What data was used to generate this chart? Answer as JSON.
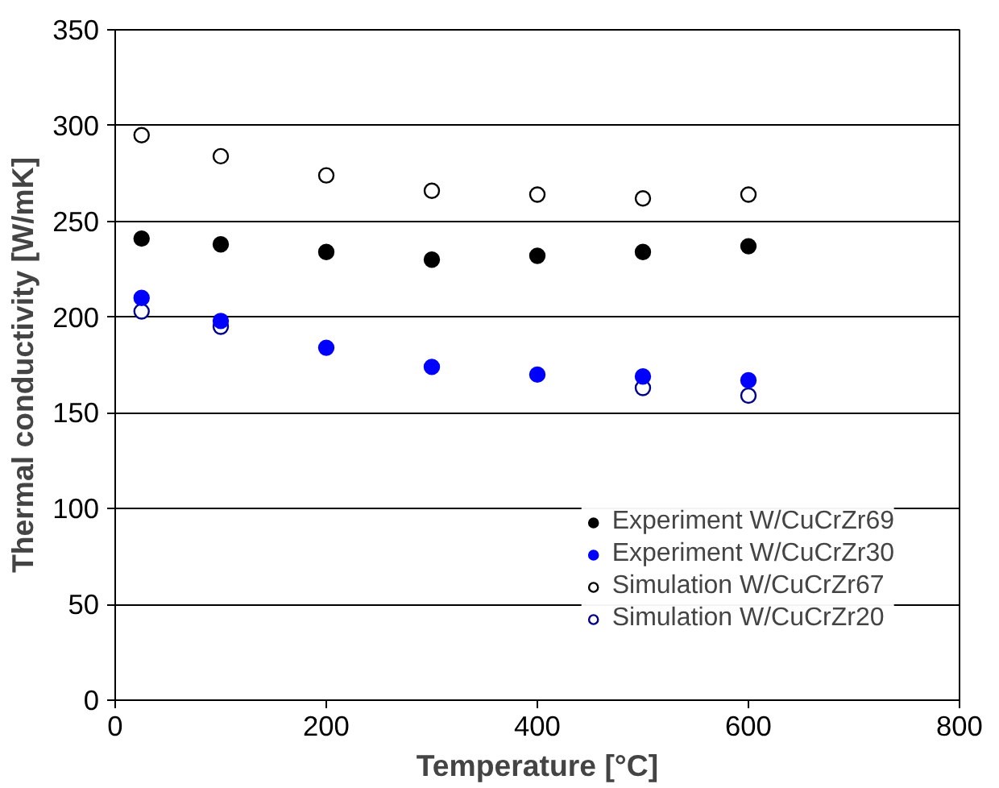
{
  "chart_data": {
    "type": "scatter",
    "xlabel": "Temperature [°C]",
    "ylabel": "Thermal conductivity [W/mK]",
    "x": [
      25,
      100,
      200,
      300,
      400,
      500,
      600
    ],
    "series": [
      {
        "name": "Experiment W/CuCrZr69",
        "color": "#000000",
        "marker": "circle",
        "values": [
          241,
          238,
          234,
          230,
          232,
          234,
          237
        ]
      },
      {
        "name": "Experiment W/CuCrZr30",
        "color": "#0000ff",
        "marker": "circle",
        "values": [
          210,
          198,
          184,
          174,
          170,
          169,
          167
        ]
      },
      {
        "name": "Simulation W/CuCrZr67",
        "color": "#000000",
        "marker": "circle_open",
        "values": [
          295,
          284,
          274,
          266,
          264,
          262,
          264
        ]
      },
      {
        "name": "Simulation W/CuCrZr20",
        "color": "#00008b",
        "marker": "circle_open",
        "values": [
          203,
          195,
          null,
          null,
          null,
          163,
          159
        ]
      }
    ],
    "xlim": [
      0,
      800
    ],
    "xticks": [
      0,
      200,
      400,
      600,
      800
    ],
    "ylim": [
      0,
      350
    ],
    "yticks": [
      0,
      50,
      100,
      150,
      200,
      250,
      300,
      350
    ],
    "grid": "y",
    "legend": "bottom right"
  }
}
